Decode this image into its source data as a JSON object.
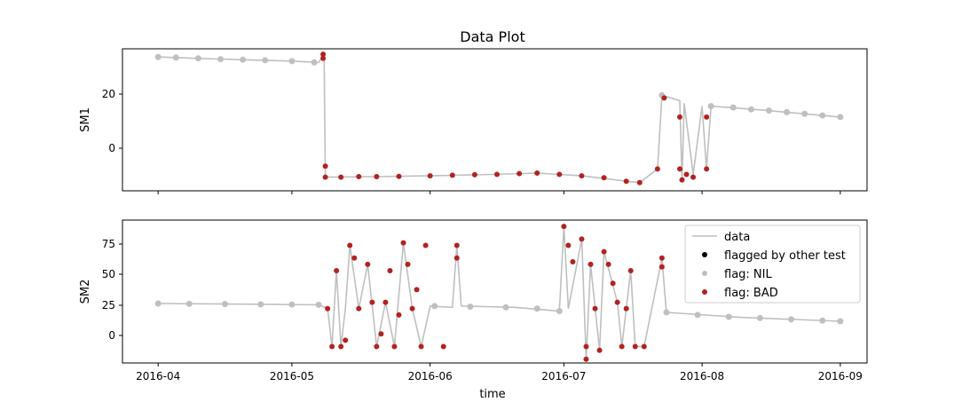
{
  "chart_data": {
    "type": "line",
    "title": "Data Plot",
    "xlabel": "time",
    "x_ticks": [
      "2016-04",
      "2016-05",
      "2016-06",
      "2016-07",
      "2016-08",
      "2016-09"
    ],
    "legend": {
      "placement": "top-right",
      "entries": [
        "data",
        "flagged by other test",
        "flag: NIL",
        "flag: BAD"
      ]
    },
    "colors": {
      "data": "#bfbfbf",
      "other": "#000000",
      "nil": "#bfbfbf",
      "bad": "#b22222"
    },
    "panels": [
      {
        "ylabel": "SM1",
        "ylim": [
          -16,
          36
        ],
        "yticks": [
          "20",
          "0"
        ],
        "data": [
          [
            "2016-04-01",
            33
          ],
          [
            "2016-04-10",
            32.5
          ],
          [
            "2016-04-20",
            32
          ],
          [
            "2016-05-01",
            31.5
          ],
          [
            "2016-05-07",
            31
          ],
          [
            "2016-05-08",
            33.5
          ],
          [
            "2016-05-08T06",
            31
          ],
          [
            "2016-05-08T12",
            -11
          ],
          [
            "2016-05-20",
            -10.8
          ],
          [
            "2016-06-01",
            -10.5
          ],
          [
            "2016-06-15",
            -10
          ],
          [
            "2016-06-25",
            -9.5
          ],
          [
            "2016-07-05",
            -10.5
          ],
          [
            "2016-07-15",
            -12.5
          ],
          [
            "2016-07-18",
            -13
          ],
          [
            "2016-07-22",
            -8
          ],
          [
            "2016-07-23",
            19
          ],
          [
            "2016-07-27",
            17
          ],
          [
            "2016-07-27T12",
            -12
          ],
          [
            "2016-07-28",
            16
          ],
          [
            "2016-07-30",
            -10
          ],
          [
            "2016-08-01",
            15
          ],
          [
            "2016-08-02",
            -8
          ],
          [
            "2016-08-03",
            15
          ],
          [
            "2016-08-15",
            13.5
          ],
          [
            "2016-09-01",
            11
          ]
        ],
        "nil_points": [
          [
            "2016-04-01",
            33
          ],
          [
            "2016-04-05",
            32.8
          ],
          [
            "2016-04-10",
            32.5
          ],
          [
            "2016-04-15",
            32.2
          ],
          [
            "2016-04-20",
            32
          ],
          [
            "2016-04-25",
            31.8
          ],
          [
            "2016-05-01",
            31.5
          ],
          [
            "2016-05-06",
            31
          ],
          [
            "2016-07-23",
            19
          ],
          [
            "2016-08-03",
            15
          ],
          [
            "2016-08-08",
            14.5
          ],
          [
            "2016-08-12",
            13.8
          ],
          [
            "2016-08-16",
            13.4
          ],
          [
            "2016-08-20",
            12.8
          ],
          [
            "2016-08-24",
            12.2
          ],
          [
            "2016-08-28",
            11.6
          ],
          [
            "2016-09-01",
            11
          ]
        ],
        "bad_points": [
          [
            "2016-05-08",
            34
          ],
          [
            "2016-05-08",
            32.5
          ],
          [
            "2016-05-08T12",
            -7
          ],
          [
            "2016-05-08T12",
            -11
          ],
          [
            "2016-05-12",
            -11
          ],
          [
            "2016-05-16",
            -10.8
          ],
          [
            "2016-05-20",
            -10.8
          ],
          [
            "2016-05-25",
            -10.7
          ],
          [
            "2016-06-01",
            -10.5
          ],
          [
            "2016-06-06",
            -10.3
          ],
          [
            "2016-06-11",
            -10.1
          ],
          [
            "2016-06-16",
            -10
          ],
          [
            "2016-06-21",
            -9.7
          ],
          [
            "2016-06-25",
            -9.5
          ],
          [
            "2016-06-30",
            -10
          ],
          [
            "2016-07-05",
            -10.5
          ],
          [
            "2016-07-10",
            -11.2
          ],
          [
            "2016-07-15",
            -12.5
          ],
          [
            "2016-07-18",
            -13
          ],
          [
            "2016-07-22",
            -8
          ],
          [
            "2016-07-23T12",
            18
          ],
          [
            "2016-07-27",
            -8
          ],
          [
            "2016-07-27",
            11
          ],
          [
            "2016-07-27T12",
            -12
          ],
          [
            "2016-07-28T12",
            -10
          ],
          [
            "2016-07-30",
            -11
          ],
          [
            "2016-08-02",
            -8
          ],
          [
            "2016-08-02",
            11
          ]
        ]
      },
      {
        "ylabel": "SM2",
        "ylim": [
          -18,
          95
        ],
        "yticks": [
          "75",
          "50",
          "25",
          "0"
        ],
        "data": [
          [
            "2016-04-01",
            29
          ],
          [
            "2016-04-20",
            28.5
          ],
          [
            "2016-05-07",
            28
          ],
          [
            "2016-05-09",
            25
          ],
          [
            "2016-05-10",
            -5
          ],
          [
            "2016-05-11",
            55
          ],
          [
            "2016-05-12",
            -5
          ],
          [
            "2016-05-13",
            25
          ],
          [
            "2016-05-14",
            75
          ],
          [
            "2016-05-16",
            25
          ],
          [
            "2016-05-18",
            60
          ],
          [
            "2016-05-20",
            -5
          ],
          [
            "2016-05-22",
            30
          ],
          [
            "2016-05-24",
            -5
          ],
          [
            "2016-05-26",
            77
          ],
          [
            "2016-05-28",
            25
          ],
          [
            "2016-05-30",
            -5
          ],
          [
            "2016-06-01",
            27
          ],
          [
            "2016-06-06",
            26
          ],
          [
            "2016-06-07",
            75
          ],
          [
            "2016-06-08",
            27
          ],
          [
            "2016-06-20",
            26
          ],
          [
            "2016-06-30",
            23
          ],
          [
            "2016-07-01",
            90
          ],
          [
            "2016-07-02",
            25
          ],
          [
            "2016-07-05",
            80
          ],
          [
            "2016-07-06",
            -15
          ],
          [
            "2016-07-07",
            60
          ],
          [
            "2016-07-09",
            -8
          ],
          [
            "2016-07-10",
            70
          ],
          [
            "2016-07-13",
            30
          ],
          [
            "2016-07-14",
            -5
          ],
          [
            "2016-07-16",
            55
          ],
          [
            "2016-07-17",
            -5
          ],
          [
            "2016-07-19",
            -5
          ],
          [
            "2016-07-23",
            65
          ],
          [
            "2016-07-24",
            22
          ],
          [
            "2016-08-10",
            18
          ],
          [
            "2016-09-01",
            15
          ]
        ],
        "nil_points": [
          [
            "2016-04-01",
            29
          ],
          [
            "2016-04-08",
            28.8
          ],
          [
            "2016-04-16",
            28.6
          ],
          [
            "2016-04-24",
            28.4
          ],
          [
            "2016-05-01",
            28.2
          ],
          [
            "2016-05-07",
            28
          ],
          [
            "2016-06-02",
            27
          ],
          [
            "2016-06-10",
            26.5
          ],
          [
            "2016-06-18",
            26
          ],
          [
            "2016-06-25",
            25
          ],
          [
            "2016-06-30",
            23
          ],
          [
            "2016-07-24",
            22
          ],
          [
            "2016-07-31",
            20
          ],
          [
            "2016-08-07",
            18.5
          ],
          [
            "2016-08-14",
            17.5
          ],
          [
            "2016-08-21",
            16.5
          ],
          [
            "2016-08-28",
            15.5
          ],
          [
            "2016-09-01",
            15
          ]
        ],
        "bad_points": [
          [
            "2016-05-09",
            25
          ],
          [
            "2016-05-10",
            -5
          ],
          [
            "2016-05-11",
            55
          ],
          [
            "2016-05-12",
            -5
          ],
          [
            "2016-05-13",
            0
          ],
          [
            "2016-05-14",
            75
          ],
          [
            "2016-05-15",
            65
          ],
          [
            "2016-05-16",
            25
          ],
          [
            "2016-05-18",
            60
          ],
          [
            "2016-05-19",
            30
          ],
          [
            "2016-05-20",
            -5
          ],
          [
            "2016-05-21",
            5
          ],
          [
            "2016-05-22",
            30
          ],
          [
            "2016-05-23",
            55
          ],
          [
            "2016-05-24",
            -5
          ],
          [
            "2016-05-25",
            20
          ],
          [
            "2016-05-26",
            77
          ],
          [
            "2016-05-27",
            60
          ],
          [
            "2016-05-28",
            25
          ],
          [
            "2016-05-29",
            40
          ],
          [
            "2016-05-30",
            -5
          ],
          [
            "2016-05-31",
            75
          ],
          [
            "2016-06-04",
            -5
          ],
          [
            "2016-06-07",
            75
          ],
          [
            "2016-06-07",
            65
          ],
          [
            "2016-07-01",
            90
          ],
          [
            "2016-07-02",
            75
          ],
          [
            "2016-07-03",
            62
          ],
          [
            "2016-07-05",
            80
          ],
          [
            "2016-07-06",
            -15
          ],
          [
            "2016-07-06",
            -5
          ],
          [
            "2016-07-07",
            60
          ],
          [
            "2016-07-08",
            25
          ],
          [
            "2016-07-09",
            -8
          ],
          [
            "2016-07-10",
            70
          ],
          [
            "2016-07-11",
            60
          ],
          [
            "2016-07-12",
            45
          ],
          [
            "2016-07-13",
            30
          ],
          [
            "2016-07-14",
            -5
          ],
          [
            "2016-07-15",
            25
          ],
          [
            "2016-07-16",
            55
          ],
          [
            "2016-07-17",
            -5
          ],
          [
            "2016-07-19",
            -5
          ],
          [
            "2016-07-23",
            65
          ],
          [
            "2016-07-23",
            58
          ]
        ]
      }
    ]
  }
}
